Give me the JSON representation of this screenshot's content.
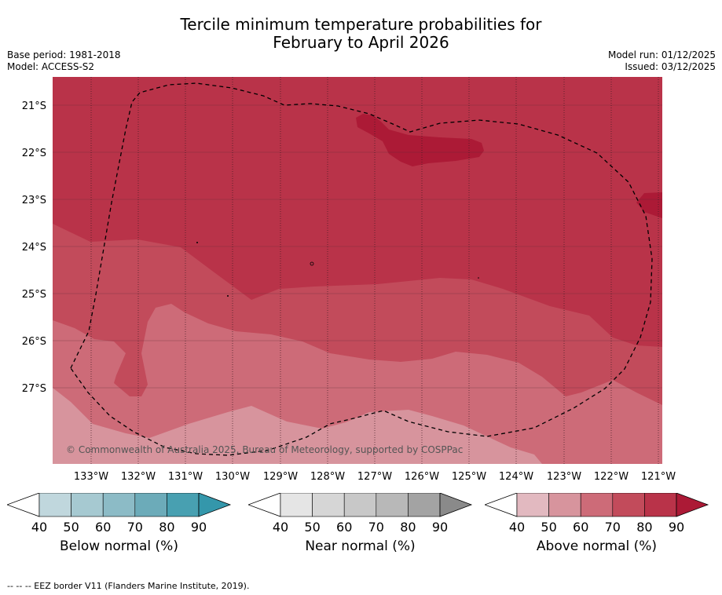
{
  "title_line1": "Tercile minimum temperature probabilities for",
  "title_line2": "February to April 2026",
  "base_period": "Base period: 1981-2018",
  "model": "Model: ACCESS-S2",
  "model_run": "Model run: 01/12/2025",
  "issued": "Issued: 03/12/2025",
  "copyright": "© Commonwealth of Australia 2025, Bureau of Meteorology, supported by COSPPac",
  "footnote": "-- -- -- EEZ border V11 (Flanders Marine Institute, 2019).",
  "map": {
    "lat_labels": [
      "21°S",
      "22°S",
      "23°S",
      "24°S",
      "25°S",
      "26°S",
      "27°S"
    ],
    "lon_labels": [
      "133°W",
      "132°W",
      "131°W",
      "130°W",
      "129°W",
      "128°W",
      "127°W",
      "126°W",
      "125°W",
      "124°W",
      "123°W",
      "122°W",
      "121°W"
    ],
    "colors": {
      "above_40": "#e2b9c0",
      "above_50": "#d7949d",
      "above_60": "#cd6b78",
      "above_70": "#c24b5b",
      "above_80": "#b93349",
      "above_90": "#ac1a36"
    }
  },
  "colorbars": [
    {
      "title": "Below normal (%)",
      "ticks": [
        "40",
        "50",
        "60",
        "70",
        "80",
        "90"
      ],
      "colors": [
        "#c0d7dd",
        "#a6c9d1",
        "#8cbbc6",
        "#6cabb9",
        "#48a0b1",
        "#3497ab"
      ]
    },
    {
      "title": "Near normal (%)",
      "ticks": [
        "40",
        "50",
        "60",
        "70",
        "80",
        "90"
      ],
      "colors": [
        "#e5e5e5",
        "#d6d6d6",
        "#c8c8c8",
        "#b8b8b8",
        "#a3a3a3",
        "#8a8a8a"
      ]
    },
    {
      "title": "Above normal (%)",
      "ticks": [
        "40",
        "50",
        "60",
        "70",
        "80",
        "90"
      ],
      "colors": [
        "#e2b9c0",
        "#d7949d",
        "#cd6b78",
        "#c24b5b",
        "#b93349",
        "#ac1a36"
      ]
    }
  ]
}
